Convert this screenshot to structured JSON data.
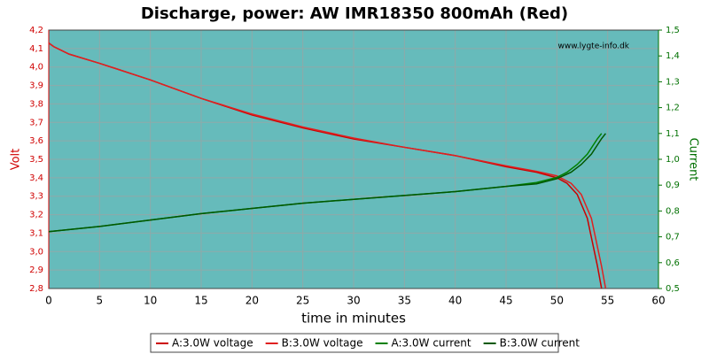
{
  "chart_data": {
    "type": "line",
    "title": "Discharge, power: AW IMR18350 800mAh (Red)",
    "watermark": "www.lygte-info.dk",
    "x_label": "time in minutes",
    "y_label": "Volt",
    "y2_label": "Current",
    "xlim": [
      0,
      60
    ],
    "xticks": [
      0,
      5,
      10,
      15,
      20,
      25,
      30,
      35,
      40,
      45,
      50,
      55,
      60
    ],
    "ylim": [
      2.8,
      4.2
    ],
    "yticks": [
      {
        "value": 2.8,
        "label": "2,8"
      },
      {
        "value": 2.9,
        "label": "2,9"
      },
      {
        "value": 3.0,
        "label": "3,0"
      },
      {
        "value": 3.1,
        "label": "3,1"
      },
      {
        "value": 3.2,
        "label": "3,2"
      },
      {
        "value": 3.3,
        "label": "3,3"
      },
      {
        "value": 3.4,
        "label": "3,4"
      },
      {
        "value": 3.5,
        "label": "3,5"
      },
      {
        "value": 3.6,
        "label": "3,6"
      },
      {
        "value": 3.7,
        "label": "3,7"
      },
      {
        "value": 3.8,
        "label": "3,8"
      },
      {
        "value": 3.9,
        "label": "3,9"
      },
      {
        "value": 4.0,
        "label": "4,0"
      },
      {
        "value": 4.1,
        "label": "4,1"
      },
      {
        "value": 4.2,
        "label": "4,2"
      }
    ],
    "y2lim": [
      0.5,
      1.5
    ],
    "y2ticks": [
      {
        "value": 0.5,
        "label": "0,5"
      },
      {
        "value": 0.6,
        "label": "0,6"
      },
      {
        "value": 0.7,
        "label": "0,7"
      },
      {
        "value": 0.8,
        "label": "0,8"
      },
      {
        "value": 0.9,
        "label": "0,9"
      },
      {
        "value": 1.0,
        "label": "1,0"
      },
      {
        "value": 1.1,
        "label": "1,1"
      },
      {
        "value": 1.2,
        "label": "1,2"
      },
      {
        "value": 1.3,
        "label": "1,3"
      },
      {
        "value": 1.4,
        "label": "1,4"
      },
      {
        "value": 1.5,
        "label": "1,5"
      }
    ],
    "grid": true,
    "y_color": "#d00000",
    "y2_color": "#007000",
    "series": [
      {
        "name": "A:3.0W voltage",
        "color": "#cc0000",
        "x": [
          0,
          0.5,
          2,
          5,
          10,
          15,
          20,
          25,
          30,
          35,
          40,
          45,
          48,
          50,
          51,
          52,
          53,
          53.5,
          54,
          54.4
        ],
        "values": [
          4.13,
          4.11,
          4.07,
          4.02,
          3.93,
          3.83,
          3.74,
          3.67,
          3.61,
          3.565,
          3.52,
          3.46,
          3.43,
          3.4,
          3.37,
          3.31,
          3.18,
          3.05,
          2.92,
          2.8
        ]
      },
      {
        "name": "B:3.0W voltage",
        "color": "#e02020",
        "x": [
          0,
          0.5,
          2,
          5,
          10,
          15,
          20,
          25,
          30,
          35,
          40,
          45,
          48,
          50,
          51.4,
          52.4,
          53.4,
          53.9,
          54.4,
          54.8
        ],
        "values": [
          4.13,
          4.11,
          4.07,
          4.02,
          3.93,
          3.83,
          3.745,
          3.675,
          3.615,
          3.565,
          3.52,
          3.465,
          3.435,
          3.41,
          3.37,
          3.31,
          3.18,
          3.05,
          2.92,
          2.8
        ]
      },
      {
        "name": "A:3.0W current",
        "color": "#008000",
        "x": [
          0,
          5,
          10,
          15,
          20,
          25,
          30,
          35,
          40,
          45,
          48,
          50,
          51,
          52,
          53,
          53.5,
          54,
          54.4
        ],
        "values": [
          0.72,
          0.74,
          0.765,
          0.79,
          0.81,
          0.83,
          0.845,
          0.86,
          0.875,
          0.895,
          0.91,
          0.93,
          0.95,
          0.98,
          1.02,
          1.05,
          1.08,
          1.1
        ]
      },
      {
        "name": "B:3.0W current",
        "color": "#005800",
        "x": [
          0,
          5,
          10,
          15,
          20,
          25,
          30,
          35,
          40,
          45,
          48,
          50,
          51.4,
          52.4,
          53.4,
          53.9,
          54.4,
          54.8
        ],
        "values": [
          0.72,
          0.74,
          0.765,
          0.79,
          0.81,
          0.83,
          0.845,
          0.86,
          0.875,
          0.895,
          0.905,
          0.925,
          0.95,
          0.98,
          1.02,
          1.05,
          1.08,
          1.1
        ]
      }
    ]
  }
}
